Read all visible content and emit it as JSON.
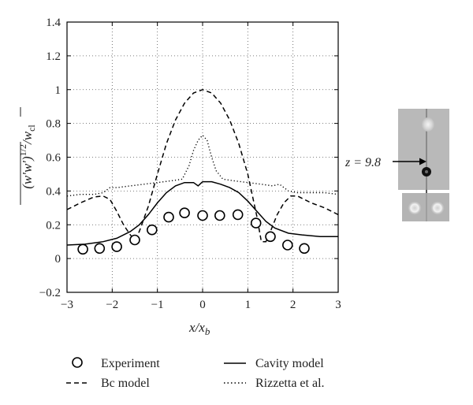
{
  "chart_data": {
    "type": "line",
    "xlabel": "x/x_b",
    "ylabel": "(w'w')^1/2/w_cl",
    "xlim": [
      -3,
      3
    ],
    "ylim": [
      -0.2,
      1.4
    ],
    "x_ticks": [
      "−3",
      "−2",
      "−1",
      "0",
      "1",
      "2",
      "3"
    ],
    "y_ticks": [
      "−0.2",
      "0",
      "0.2",
      "0.4",
      "0.6",
      "0.8",
      "1",
      "1.2",
      "1.4"
    ],
    "grid": true,
    "legend_position": "bottom",
    "series": [
      {
        "name": "Experiment",
        "style": "circles",
        "x": [
          -2.65,
          -2.28,
          -1.9,
          -1.5,
          -1.12,
          -0.75,
          -0.4,
          0.0,
          0.38,
          0.78,
          1.18,
          1.5,
          1.88,
          2.25
        ],
        "y": [
          0.055,
          0.06,
          0.07,
          0.11,
          0.17,
          0.245,
          0.27,
          0.255,
          0.255,
          0.26,
          0.21,
          0.13,
          0.08,
          0.06
        ]
      },
      {
        "name": "Cavity model",
        "style": "solid",
        "x": [
          -3,
          -2.6,
          -2.2,
          -1.9,
          -1.6,
          -1.4,
          -1.2,
          -1.0,
          -0.8,
          -0.6,
          -0.4,
          -0.2,
          -0.1,
          0,
          0.2,
          0.4,
          0.6,
          0.8,
          1.0,
          1.2,
          1.4,
          1.6,
          1.9,
          2.2,
          2.6,
          3.0
        ],
        "y": [
          0.08,
          0.085,
          0.1,
          0.12,
          0.16,
          0.2,
          0.26,
          0.33,
          0.39,
          0.43,
          0.45,
          0.45,
          0.43,
          0.455,
          0.455,
          0.44,
          0.42,
          0.39,
          0.34,
          0.28,
          0.22,
          0.18,
          0.15,
          0.14,
          0.13,
          0.13
        ]
      },
      {
        "name": "Bc model",
        "style": "dashed",
        "x": [
          -3,
          -2.7,
          -2.4,
          -2.2,
          -2.05,
          -1.9,
          -1.75,
          -1.6,
          -1.5,
          -1.4,
          -1.2,
          -1.0,
          -0.8,
          -0.6,
          -0.4,
          -0.2,
          0,
          0.2,
          0.4,
          0.6,
          0.8,
          1.0,
          1.2,
          1.3,
          1.4,
          1.5,
          1.65,
          1.8,
          1.95,
          2.1,
          2.4,
          2.7,
          3.0
        ],
        "y": [
          0.29,
          0.33,
          0.365,
          0.37,
          0.35,
          0.28,
          0.2,
          0.14,
          0.11,
          0.16,
          0.31,
          0.5,
          0.68,
          0.82,
          0.92,
          0.98,
          1.0,
          0.98,
          0.92,
          0.82,
          0.68,
          0.5,
          0.25,
          0.1,
          0.1,
          0.16,
          0.26,
          0.33,
          0.37,
          0.37,
          0.33,
          0.3,
          0.26
        ]
      },
      {
        "name": "Rizzetta et al.",
        "style": "dotted",
        "x": [
          -3,
          -2.7,
          -2.4,
          -2.2,
          -2.05,
          -1.9,
          -1.6,
          -1.3,
          -1.0,
          -0.7,
          -0.45,
          -0.3,
          -0.2,
          -0.1,
          0,
          0.1,
          0.2,
          0.3,
          0.45,
          0.7,
          1.0,
          1.3,
          1.55,
          1.7,
          1.9,
          2.1,
          2.4,
          2.7,
          3.0
        ],
        "y": [
          0.37,
          0.38,
          0.38,
          0.39,
          0.42,
          0.42,
          0.43,
          0.44,
          0.45,
          0.46,
          0.47,
          0.55,
          0.64,
          0.7,
          0.73,
          0.7,
          0.6,
          0.52,
          0.47,
          0.46,
          0.45,
          0.44,
          0.43,
          0.44,
          0.4,
          0.39,
          0.39,
          0.39,
          0.38
        ]
      }
    ]
  },
  "legend": {
    "experiment": "Experiment",
    "cavity": "Cavity model",
    "bc": "Bc model",
    "rizzetta": "Rizzetta et al."
  },
  "annotation": {
    "z_label": "z = 9.8"
  }
}
